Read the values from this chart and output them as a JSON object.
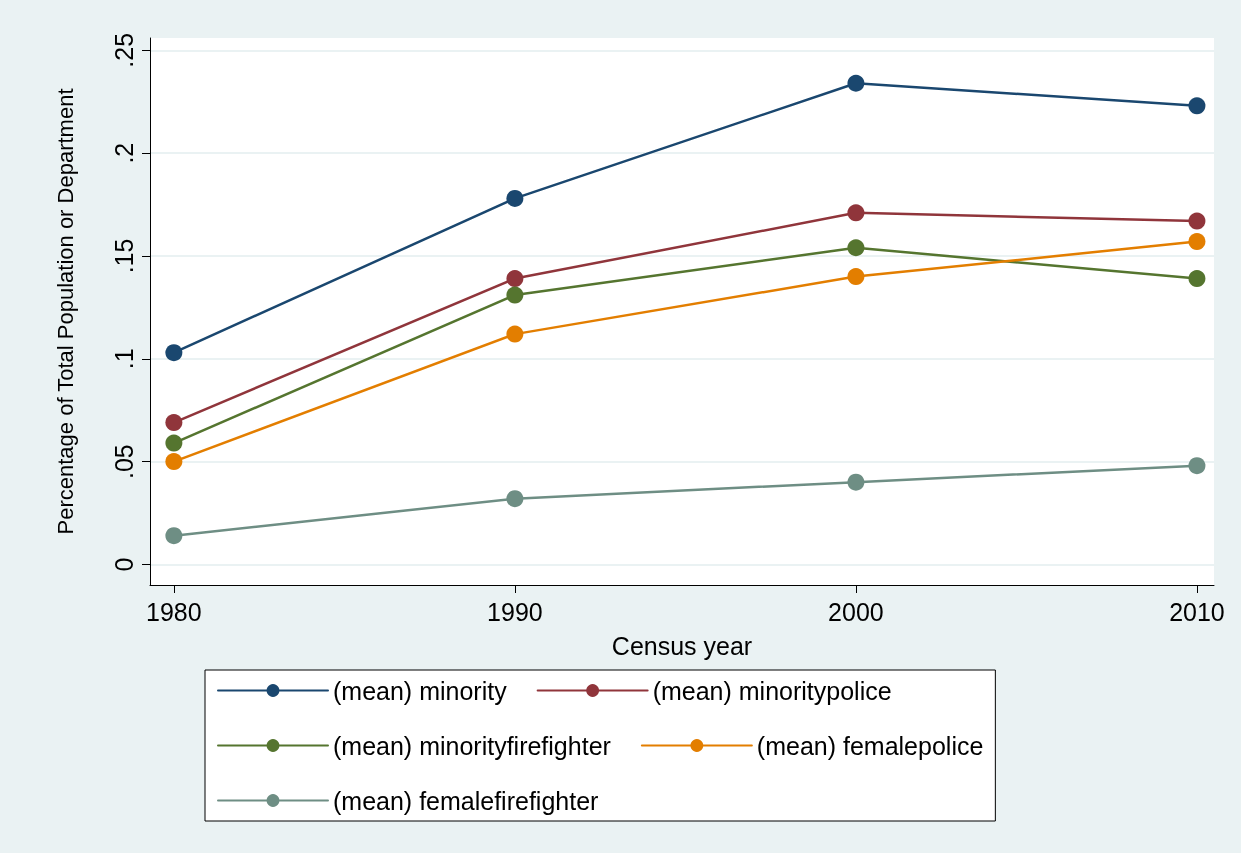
{
  "chart_data": {
    "type": "line",
    "xlabel": "Census year",
    "ylabel": "Percentage of Total Population or Department",
    "x": [
      1980,
      1990,
      2000,
      2010
    ],
    "series": [
      {
        "name": "(mean) minority",
        "color": "#1a476f",
        "values": [
          0.103,
          0.178,
          0.234,
          0.223
        ]
      },
      {
        "name": "(mean) minoritypolice",
        "color": "#90353b",
        "values": [
          0.069,
          0.139,
          0.171,
          0.167
        ]
      },
      {
        "name": "(mean) minorityfirefighter",
        "color": "#55752f",
        "values": [
          0.059,
          0.131,
          0.154,
          0.139
        ]
      },
      {
        "name": "(mean) femalepolice",
        "color": "#e37e00",
        "values": [
          0.05,
          0.112,
          0.14,
          0.157
        ]
      },
      {
        "name": "(mean) femalefirefighter",
        "color": "#6e8e84",
        "values": [
          0.014,
          0.032,
          0.04,
          0.048
        ]
      }
    ],
    "xlim": [
      1979.3,
      2010.5
    ],
    "xticks": [
      1980,
      1990,
      2000,
      2010
    ],
    "ylim": [
      -0.01,
      0.256
    ],
    "yticks": [
      0,
      {
        "value": 0.05,
        "label": ".05"
      },
      {
        "value": 0.1,
        "label": ".1"
      },
      {
        "value": 0.15,
        "label": ".15"
      },
      {
        "value": 0.2,
        "label": ".2"
      },
      {
        "value": 0.25,
        "label": ".25"
      }
    ],
    "grid": "y",
    "legend": "bottom",
    "marker": "circle",
    "line_style": "solid"
  }
}
